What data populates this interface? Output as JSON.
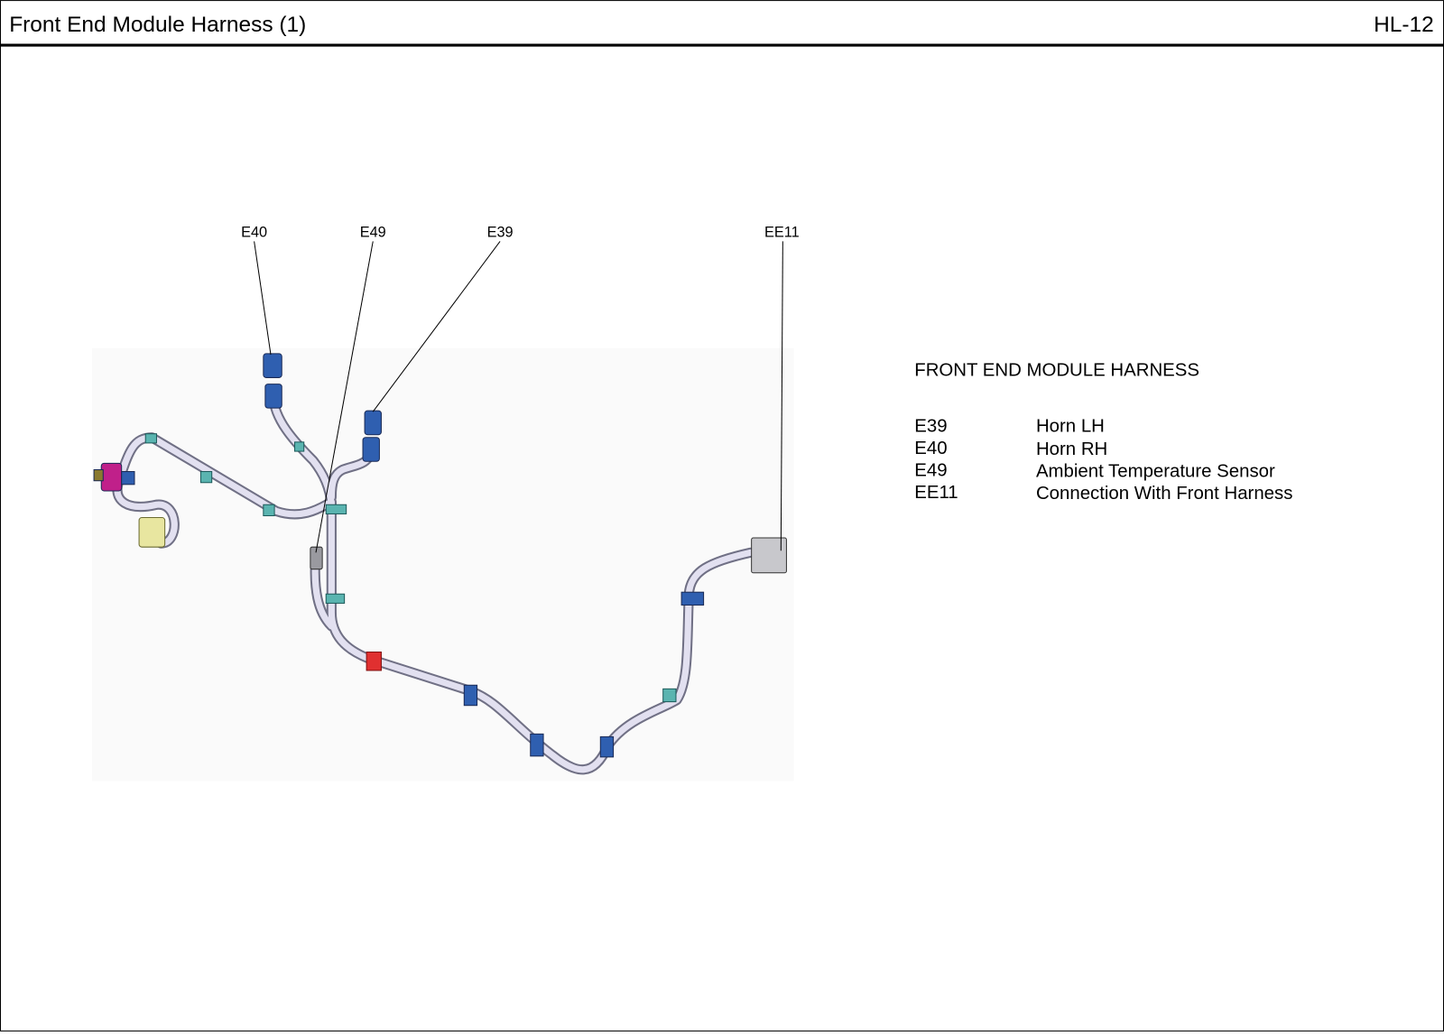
{
  "header": {
    "title": "Front End Module Harness (1)",
    "code": "HL-12"
  },
  "callouts": [
    {
      "label": "E40"
    },
    {
      "label": "E49"
    },
    {
      "label": "E39"
    },
    {
      "label": "EE11"
    }
  ],
  "legend": {
    "title": "FRONT END MODULE HARNESS",
    "rows": [
      [
        "E39",
        "Horn LH"
      ],
      [
        "E40",
        "Horn RH"
      ],
      [
        "E49",
        "Ambient Temperature Sensor"
      ],
      [
        "EE11",
        "Connection With Front Harness"
      ]
    ]
  }
}
